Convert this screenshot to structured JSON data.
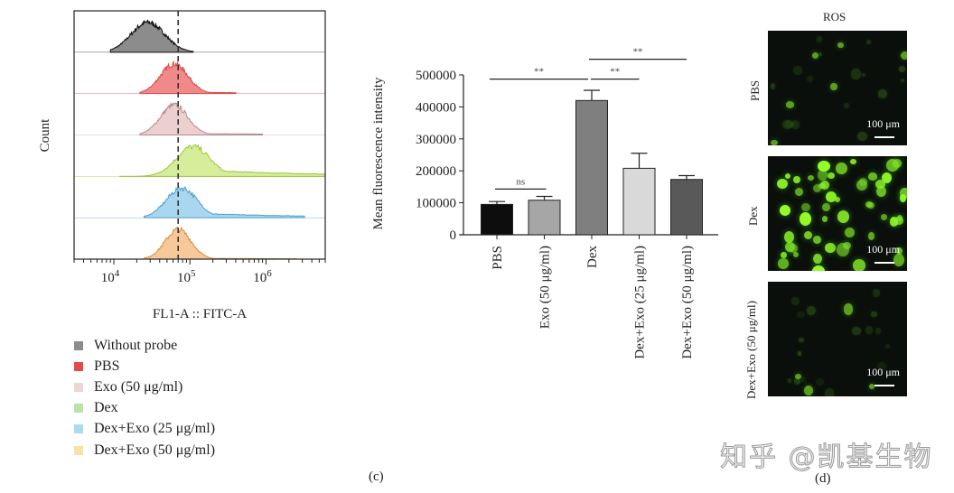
{
  "figure": {
    "panel_c_label": "(c)",
    "panel_d_label": "(d)",
    "watermark": "知乎 @凯基生物"
  },
  "chart_data": [
    {
      "type": "area",
      "subtype": "flow-cytometry-histogram-overlay",
      "xlabel": "FL1-A :: FITC-A",
      "ylabel": "Count",
      "x_scale": "log",
      "xlim": [
        3000,
        6000000
      ],
      "x_ticks": [
        {
          "value": 10000,
          "base": "10",
          "exp": "4"
        },
        {
          "value": 100000,
          "base": "10",
          "exp": "5"
        },
        {
          "value": 1000000,
          "base": "10",
          "exp": "6"
        }
      ],
      "reference_line_x": 70000,
      "legend_placement": "bottom",
      "series": [
        {
          "name": "Without probe",
          "color": "#8c8c8c",
          "stroke": "#111111",
          "peak": 28000,
          "spread": 0.22,
          "tail": 0.0,
          "range": [
            9000,
            110000
          ]
        },
        {
          "name": "PBS",
          "color": "#f08a8a",
          "stroke": "#d84a4a",
          "peak": 62000,
          "spread": 0.18,
          "tail": 0.05,
          "range": [
            22000,
            400000
          ]
        },
        {
          "name": "Exo (50 μg/ml)",
          "color": "#ecd0d0",
          "stroke": "#b88a8a",
          "peak": 62000,
          "spread": 0.18,
          "tail": 0.06,
          "range": [
            22000,
            900000
          ]
        },
        {
          "name": "Dex",
          "color": "#d6ee9c",
          "stroke": "#9cc53a",
          "peak": 110000,
          "spread": 0.22,
          "tail": 0.22,
          "range": [
            12000,
            6000000
          ]
        },
        {
          "name": "Dex+Exo (25 μg/ml)",
          "color": "#aad7f0",
          "stroke": "#4a9fd0",
          "peak": 78000,
          "spread": 0.2,
          "tail": 0.16,
          "range": [
            25000,
            3200000
          ]
        },
        {
          "name": "Dex+Exo (50 μg/ml)",
          "color": "#f7c99a",
          "stroke": "#d88a3a",
          "peak": 70000,
          "spread": 0.17,
          "tail": 0.03,
          "range": [
            25000,
            2500000
          ]
        }
      ],
      "legend": [
        {
          "label": "Without probe",
          "color": "#8c8c8c"
        },
        {
          "label": "PBS",
          "color": "#e04b4b"
        },
        {
          "label": "Exo (50 μg/ml)",
          "color": "#ecd5d7"
        },
        {
          "label": "Dex",
          "color": "#b8e4a8"
        },
        {
          "label": "Dex+Exo (25 μg/ml)",
          "color": "#a8dcef"
        },
        {
          "label": "Dex+Exo (50 μg/ml)",
          "color": "#f6e2a6"
        }
      ]
    },
    {
      "type": "bar",
      "title": "",
      "ylabel": "Mean fluorescence intensity",
      "xlabel": "",
      "ylim": [
        0,
        500000
      ],
      "y_ticks": [
        0,
        100000,
        200000,
        300000,
        400000,
        500000
      ],
      "y_tick_labels": [
        "0",
        "100000",
        "200000",
        "300000",
        "400000",
        "500000"
      ],
      "categories": [
        "PBS",
        "Exo (50 μg/ml)",
        "Dex",
        "Dex+Exo (25 μg/ml)",
        "Dex+Exo (50 μg/ml)"
      ],
      "values": [
        95000,
        108000,
        420000,
        208000,
        173000
      ],
      "errors": [
        9000,
        12000,
        32000,
        47000,
        12000
      ],
      "colors": [
        "#0d0d0d",
        "#a6a6a6",
        "#7f7f7f",
        "#d9d9d9",
        "#595959"
      ],
      "significance": [
        {
          "from": 0,
          "to": 1,
          "label": "ns",
          "y": 143000
        },
        {
          "from": 0,
          "to": 2,
          "label": "**",
          "y": 487000
        },
        {
          "from": 2,
          "to": 3,
          "label": "**",
          "y": 487000
        },
        {
          "from": 2,
          "to": 4,
          "label": "**",
          "y": 549000
        }
      ]
    }
  ],
  "microscopy": {
    "title": "ROS",
    "panels": [
      {
        "label": "PBS",
        "scale": "100 μm",
        "intensity": "low"
      },
      {
        "label": "Dex",
        "scale": "100 μm",
        "intensity": "high"
      },
      {
        "label": "Dex+Exo (50 μg/ml)",
        "scale": "100 μm",
        "intensity": "low"
      }
    ]
  }
}
